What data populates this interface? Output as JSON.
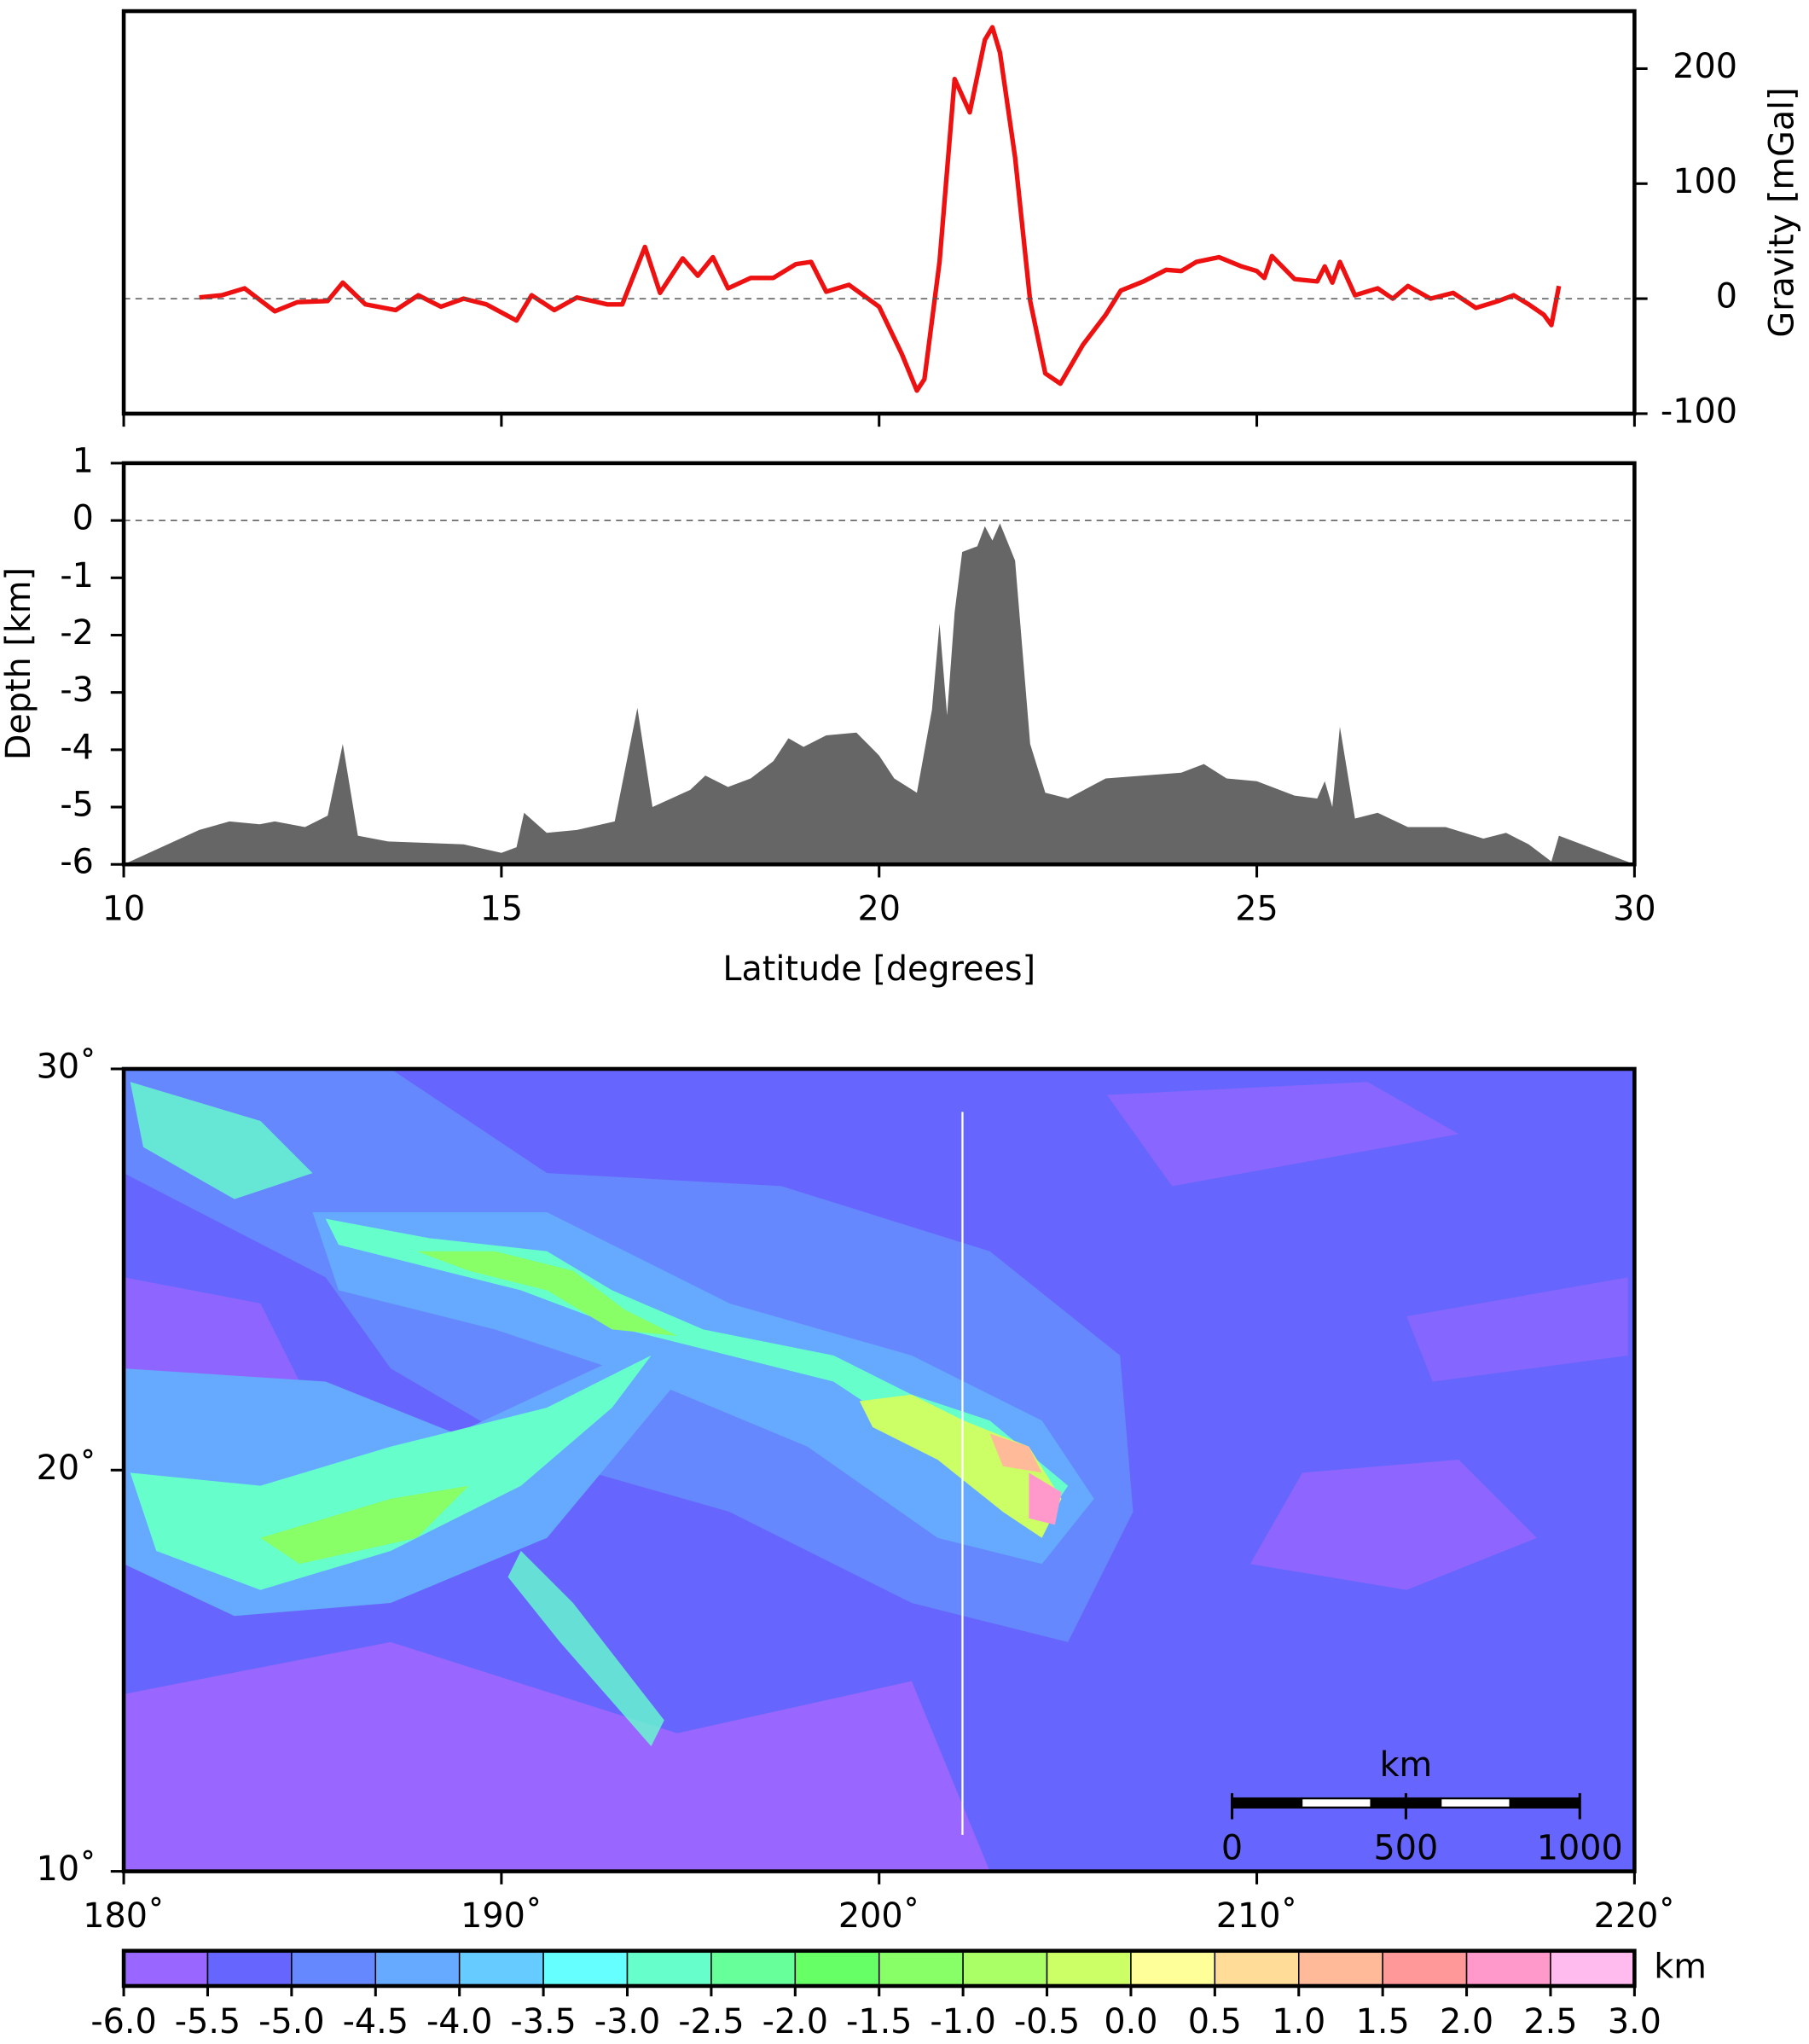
{
  "chart_data": [
    {
      "type": "line",
      "ylabel": "Gravity [mGal]",
      "color": "#ee1111",
      "xlim": [
        10,
        30
      ],
      "xticks": [
        10,
        15,
        20,
        25,
        30
      ],
      "ylim": [
        -100,
        250
      ],
      "yticks": [
        -100,
        0,
        100,
        200
      ],
      "x": [
        11.0,
        11.3,
        11.6,
        12.0,
        12.3,
        12.7,
        12.9,
        13.2,
        13.6,
        13.9,
        14.2,
        14.5,
        14.8,
        15.2,
        15.4,
        15.7,
        16.0,
        16.4,
        16.6,
        16.9,
        17.1,
        17.4,
        17.6,
        17.8,
        18.0,
        18.3,
        18.6,
        18.9,
        19.1,
        19.3,
        19.6,
        20.0,
        20.3,
        20.5,
        20.6,
        20.8,
        21.0,
        21.2,
        21.4,
        21.5,
        21.6,
        21.8,
        22.0,
        22.2,
        22.4,
        22.7,
        23.0,
        23.2,
        23.5,
        23.8,
        24.0,
        24.2,
        24.5,
        24.8,
        25.0,
        25.1,
        25.2,
        25.5,
        25.8,
        25.9,
        26.0,
        26.1,
        26.3,
        26.6,
        26.8,
        27.0,
        27.3,
        27.6,
        27.9,
        28.2,
        28.4,
        28.6,
        28.8,
        28.9,
        29.0
      ],
      "values": [
        1,
        3,
        9,
        -11,
        -3,
        -2,
        14,
        -5,
        -10,
        3,
        -7,
        0,
        -5,
        -19,
        3,
        -10,
        1,
        -5,
        -5,
        45,
        5,
        35,
        20,
        36,
        9,
        18,
        18,
        30,
        32,
        6,
        12,
        -7,
        -48,
        -80,
        -70,
        32,
        191,
        162,
        225,
        236,
        214,
        123,
        -2,
        -65,
        -74,
        -40,
        -14,
        7,
        15,
        25,
        24,
        32,
        36,
        28,
        24,
        18,
        37,
        17,
        15,
        28,
        14,
        32,
        3,
        9,
        0,
        11,
        0,
        5,
        -8,
        -2,
        3,
        -5,
        -14,
        -23,
        11
      ]
    },
    {
      "type": "area",
      "ylabel": "Depth [km]",
      "xlabel": "Latitude [degrees]",
      "color": "#666666",
      "xlim": [
        10,
        30
      ],
      "xticks": [
        10,
        15,
        20,
        25,
        30
      ],
      "ylim": [
        -6,
        1
      ],
      "yticks": [
        -6,
        -5,
        -4,
        -3,
        -2,
        -1,
        0,
        1
      ],
      "x": [
        10.0,
        11.0,
        11.4,
        11.8,
        12.0,
        12.4,
        12.7,
        12.9,
        13.1,
        13.5,
        14.5,
        15.0,
        15.2,
        15.3,
        15.6,
        16.0,
        16.5,
        16.8,
        17.0,
        17.5,
        17.7,
        18.0,
        18.3,
        18.6,
        18.8,
        19.0,
        19.3,
        19.7,
        20.0,
        20.2,
        20.5,
        20.7,
        20.8,
        20.9,
        21.0,
        21.1,
        21.3,
        21.4,
        21.5,
        21.6,
        21.8,
        21.9,
        22.0,
        22.2,
        22.5,
        23.0,
        23.5,
        24.0,
        24.3,
        24.6,
        25.0,
        25.5,
        25.8,
        25.9,
        26.0,
        26.1,
        26.3,
        26.6,
        27.0,
        27.5,
        28.0,
        28.3,
        28.6,
        28.9,
        29.0,
        30.0
      ],
      "values": [
        -6,
        -5.4,
        -5.25,
        -5.3,
        -5.25,
        -5.35,
        -5.15,
        -3.9,
        -5.5,
        -5.6,
        -5.65,
        -5.8,
        -5.7,
        -5.1,
        -5.45,
        -5.4,
        -5.25,
        -3.27,
        -5.0,
        -4.7,
        -4.45,
        -4.65,
        -4.5,
        -4.2,
        -3.8,
        -3.95,
        -3.75,
        -3.7,
        -4.1,
        -4.5,
        -4.75,
        -3.3,
        -1.8,
        -3.4,
        -1.6,
        -0.55,
        -0.45,
        -0.1,
        -0.35,
        -0.05,
        -0.7,
        -2.3,
        -3.9,
        -4.75,
        -4.85,
        -4.5,
        -4.45,
        -4.4,
        -4.25,
        -4.5,
        -4.55,
        -4.8,
        -4.85,
        -4.55,
        -5.0,
        -3.6,
        -5.2,
        -5.1,
        -5.35,
        -5.35,
        -5.55,
        -5.45,
        -5.65,
        -5.95,
        -5.5,
        -6
      ]
    },
    {
      "type": "map",
      "xlim": [
        180,
        220
      ],
      "xticks": [
        {
          "value": 180,
          "label": "180˚"
        },
        {
          "value": 190,
          "label": "190˚"
        },
        {
          "value": 200,
          "label": "200˚"
        },
        {
          "value": 210,
          "label": "210˚"
        },
        {
          "value": 220,
          "label": "220˚"
        }
      ],
      "ylim": [
        10,
        30
      ],
      "yticks": [
        {
          "value": 10,
          "label": "10˚"
        },
        {
          "value": 20,
          "label": "20˚"
        },
        {
          "value": 30,
          "label": "30˚"
        }
      ],
      "scale_bar": {
        "label": "km",
        "ticks": [
          0,
          500,
          1000
        ]
      },
      "colorbar": {
        "label": "km",
        "ticks": [
          {
            "value": -6,
            "label": "-6.0"
          },
          {
            "value": -5.5,
            "label": "-5.5"
          },
          {
            "value": -5,
            "label": "-5.0"
          },
          {
            "value": -4.5,
            "label": "-4.5"
          },
          {
            "value": -4,
            "label": "-4.0"
          },
          {
            "value": -3.5,
            "label": "-3.5"
          },
          {
            "value": -3,
            "label": "-3.0"
          },
          {
            "value": -2.5,
            "label": "-2.5"
          },
          {
            "value": -2,
            "label": "-2.0"
          },
          {
            "value": -1.5,
            "label": "-1.5"
          },
          {
            "value": -1,
            "label": "-1.0"
          },
          {
            "value": -0.5,
            "label": "-0.5"
          },
          {
            "value": 0,
            "label": "0.0"
          },
          {
            "value": 0.5,
            "label": "0.5"
          },
          {
            "value": 1,
            "label": "1.0"
          },
          {
            "value": 1.5,
            "label": "1.5"
          },
          {
            "value": 2,
            "label": "2.0"
          },
          {
            "value": 2.5,
            "label": "2.5"
          },
          {
            "value": 3,
            "label": "3.0"
          }
        ],
        "colors": [
          "#9966ff",
          "#6666ff",
          "#6688ff",
          "#66aaff",
          "#66ccff",
          "#66ffff",
          "#66ffcc",
          "#66ff99",
          "#66ff66",
          "#88ff66",
          "#aaff66",
          "#ccff66",
          "#ffff99",
          "#ffdd99",
          "#ffbb99",
          "#ff9999",
          "#ff99cc",
          "#ffbbee"
        ]
      }
    }
  ]
}
